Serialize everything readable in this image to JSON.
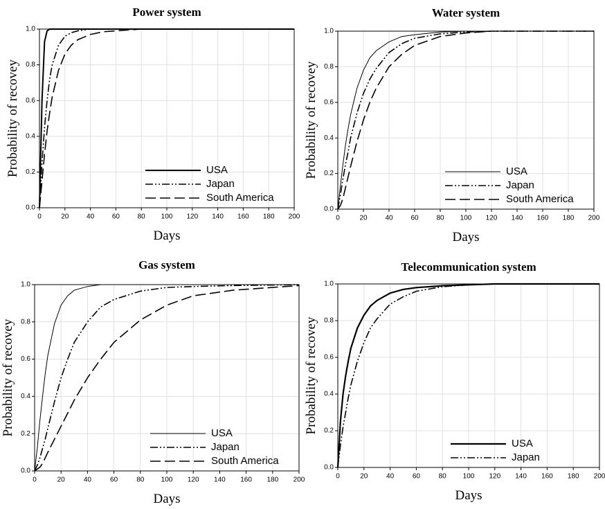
{
  "chart_data": [
    {
      "type": "line",
      "title": "Power system",
      "x_label": "Days",
      "y_label": "Probability of recovey",
      "x": [
        0,
        2,
        4,
        6,
        8,
        10,
        15,
        20,
        25,
        30,
        40,
        50,
        60,
        80,
        100,
        120,
        150,
        200
      ],
      "series": [
        {
          "name": "USA",
          "color": "#000000",
          "dash": "solid",
          "line_width": 2,
          "values": [
            0,
            0.6,
            0.93,
            0.99,
            1,
            1,
            1,
            1,
            1,
            1,
            1,
            1,
            1,
            1,
            1,
            1,
            1,
            1
          ]
        },
        {
          "name": "Japan",
          "color": "#000000",
          "dash": "dash-dot-dot",
          "line_width": 1.6,
          "values": [
            0,
            0.25,
            0.45,
            0.6,
            0.72,
            0.8,
            0.91,
            0.96,
            0.98,
            0.99,
            1,
            1,
            1,
            1,
            1,
            1,
            1,
            1
          ]
        },
        {
          "name": "South America",
          "color": "#000000",
          "dash": "dash",
          "line_width": 1.6,
          "values": [
            0,
            0.15,
            0.3,
            0.43,
            0.53,
            0.62,
            0.77,
            0.86,
            0.91,
            0.94,
            0.97,
            0.985,
            0.99,
            1,
            1,
            1,
            1,
            1
          ]
        }
      ],
      "xlim": [
        0,
        200
      ],
      "ylim": [
        0,
        1
      ],
      "xticks": [
        0,
        20,
        40,
        60,
        80,
        100,
        120,
        140,
        160,
        180,
        200
      ],
      "yticks": [
        {
          "value": 0,
          "label": "0.0"
        },
        0.2,
        0.4,
        0.6,
        0.8,
        {
          "value": 1,
          "label": "1.0"
        }
      ],
      "grid": true,
      "legend": "lower right"
    },
    {
      "type": "line",
      "title": "Water system",
      "x_label": "Days",
      "y_label": "Probability of recovey",
      "x": [
        0,
        2,
        4,
        6,
        8,
        10,
        15,
        20,
        25,
        30,
        40,
        50,
        60,
        80,
        100,
        120,
        150,
        200
      ],
      "series": [
        {
          "name": "USA",
          "color": "#000000",
          "dash": "solid",
          "line_width": 1,
          "values": [
            0,
            0.13,
            0.25,
            0.36,
            0.45,
            0.53,
            0.68,
            0.78,
            0.85,
            0.89,
            0.94,
            0.97,
            0.98,
            0.995,
            1,
            1,
            1,
            1
          ]
        },
        {
          "name": "Japan",
          "color": "#000000",
          "dash": "dash-dot-dot",
          "line_width": 1.6,
          "values": [
            0,
            0.08,
            0.17,
            0.25,
            0.32,
            0.4,
            0.54,
            0.65,
            0.73,
            0.79,
            0.88,
            0.93,
            0.96,
            0.985,
            0.995,
            1,
            1,
            1
          ]
        },
        {
          "name": "South America",
          "color": "#000000",
          "dash": "dash",
          "line_width": 1.6,
          "values": [
            0,
            0.02,
            0.06,
            0.12,
            0.18,
            0.24,
            0.38,
            0.5,
            0.6,
            0.68,
            0.8,
            0.87,
            0.92,
            0.97,
            0.99,
            1,
            1,
            1
          ]
        }
      ],
      "xlim": [
        0,
        200
      ],
      "ylim": [
        0,
        1
      ],
      "xticks": [
        0,
        20,
        40,
        60,
        80,
        100,
        120,
        140,
        160,
        180,
        200
      ],
      "yticks": [
        {
          "value": 0,
          "label": "0.0"
        },
        0.2,
        0.4,
        0.6,
        0.8,
        {
          "value": 1,
          "label": "1.0"
        }
      ],
      "grid": true,
      "legend": "lower right"
    },
    {
      "type": "line",
      "title": "Gas system",
      "x_label": "Days",
      "y_label": "Probability of recovey",
      "x": [
        0,
        2,
        4,
        6,
        8,
        10,
        15,
        20,
        25,
        30,
        40,
        50,
        60,
        80,
        100,
        120,
        150,
        200
      ],
      "series": [
        {
          "name": "USA",
          "color": "#000000",
          "dash": "solid",
          "line_width": 1,
          "values": [
            0,
            0.12,
            0.27,
            0.4,
            0.52,
            0.62,
            0.79,
            0.89,
            0.94,
            0.97,
            0.99,
            1,
            1,
            1,
            1,
            1,
            1,
            1
          ]
        },
        {
          "name": "Japan",
          "color": "#000000",
          "dash": "dash-dot-dot",
          "line_width": 1.6,
          "values": [
            0,
            0.03,
            0.07,
            0.12,
            0.17,
            0.23,
            0.37,
            0.5,
            0.6,
            0.69,
            0.8,
            0.88,
            0.92,
            0.965,
            0.985,
            0.99,
            0.995,
            1
          ]
        },
        {
          "name": "South America",
          "color": "#000000",
          "dash": "dash",
          "line_width": 1.6,
          "values": [
            0,
            0.01,
            0.02,
            0.04,
            0.07,
            0.1,
            0.17,
            0.24,
            0.31,
            0.38,
            0.5,
            0.6,
            0.69,
            0.81,
            0.89,
            0.94,
            0.97,
            0.995
          ]
        }
      ],
      "xlim": [
        0,
        200
      ],
      "ylim": [
        0,
        1
      ],
      "xticks": [
        0,
        20,
        40,
        60,
        80,
        100,
        120,
        140,
        160,
        180,
        200
      ],
      "yticks": [
        {
          "value": 0,
          "label": "0.0"
        },
        0.2,
        0.4,
        0.6,
        0.8,
        {
          "value": 1,
          "label": "1.0"
        }
      ],
      "grid": true,
      "legend": "lower right"
    },
    {
      "type": "line",
      "title": "Telecommunication system",
      "x_label": "Days",
      "y_label": "Probability of recovey",
      "x": [
        0,
        2,
        4,
        6,
        8,
        10,
        15,
        20,
        25,
        30,
        40,
        50,
        60,
        80,
        100,
        120,
        150,
        200
      ],
      "series": [
        {
          "name": "USA",
          "color": "#000000",
          "dash": "solid",
          "line_width": 2.2,
          "values": [
            0,
            0.25,
            0.4,
            0.5,
            0.58,
            0.65,
            0.76,
            0.83,
            0.88,
            0.91,
            0.95,
            0.97,
            0.98,
            0.99,
            0.995,
            1,
            1,
            1
          ]
        },
        {
          "name": "Japan",
          "color": "#000000",
          "dash": "dash-dot-dot",
          "line_width": 1.6,
          "values": [
            0,
            0.12,
            0.22,
            0.3,
            0.38,
            0.45,
            0.58,
            0.68,
            0.76,
            0.81,
            0.89,
            0.93,
            0.96,
            0.985,
            0.995,
            1,
            1,
            1
          ]
        }
      ],
      "xlim": [
        0,
        200
      ],
      "ylim": [
        0,
        1
      ],
      "xticks": [
        0,
        20,
        40,
        60,
        80,
        100,
        120,
        140,
        160,
        180,
        200
      ],
      "yticks": [
        {
          "value": 0,
          "label": "0.0"
        },
        0.2,
        0.4,
        0.6,
        0.8,
        {
          "value": 1,
          "label": "1.0"
        }
      ],
      "grid": true,
      "legend": "lower right"
    }
  ]
}
